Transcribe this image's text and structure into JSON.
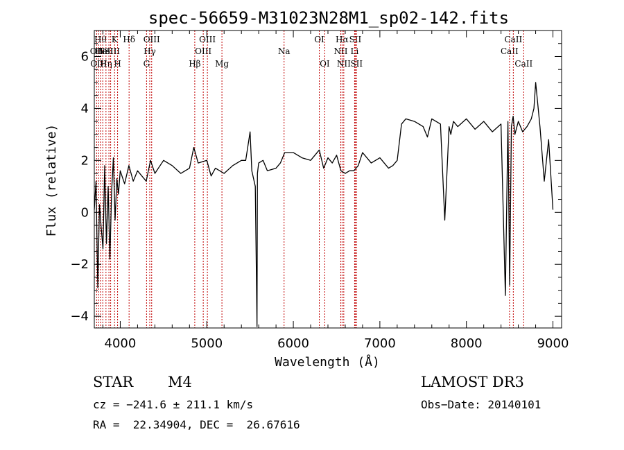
{
  "chart_data": {
    "type": "line",
    "title": "spec-56659-M31023N28M1_sp02-142.fits",
    "xlabel": "Wavelength (Å)",
    "ylabel": "Flux (relative)",
    "xlim": [
      3700,
      9100
    ],
    "ylim": [
      -4.45,
      7.0
    ],
    "xticks": [
      4000,
      5000,
      6000,
      7000,
      8000,
      9000
    ],
    "yticks": [
      -4,
      -2,
      0,
      2,
      4,
      6
    ],
    "line_color": "#000000",
    "marker_color": "#c00000",
    "spectrum": {
      "x": [
        3700,
        3720,
        3740,
        3760,
        3780,
        3800,
        3820,
        3840,
        3860,
        3880,
        3900,
        3920,
        3940,
        3960,
        3980,
        4000,
        4050,
        4100,
        4150,
        4200,
        4250,
        4300,
        4350,
        4400,
        4500,
        4600,
        4700,
        4800,
        4850,
        4900,
        5000,
        5050,
        5100,
        5200,
        5300,
        5400,
        5450,
        5500,
        5520,
        5560,
        5580,
        5585,
        5600,
        5650,
        5700,
        5800,
        5850,
        5900,
        6000,
        6100,
        6200,
        6300,
        6350,
        6400,
        6450,
        6500,
        6550,
        6600,
        6650,
        6700,
        6750,
        6800,
        6850,
        6900,
        7000,
        7100,
        7150,
        7200,
        7250,
        7300,
        7400,
        7500,
        7550,
        7600,
        7700,
        7750,
        7800,
        7820,
        7850,
        7900,
        8000,
        8100,
        8200,
        8300,
        8400,
        8450,
        8480,
        8500,
        8520,
        8540,
        8560,
        8600,
        8650,
        8700,
        8750,
        8780,
        8800,
        8850,
        8900,
        8950,
        9000
      ],
      "y": [
        0.1,
        1.2,
        -2.9,
        0.3,
        -0.6,
        -1.4,
        1.8,
        -1.2,
        1.0,
        -1.8,
        0.8,
        2.1,
        -0.3,
        1.3,
        0.7,
        1.6,
        1.1,
        1.8,
        1.2,
        1.6,
        1.4,
        1.2,
        2.0,
        1.5,
        2.0,
        1.8,
        1.5,
        1.7,
        2.5,
        1.9,
        2.0,
        1.4,
        1.7,
        1.5,
        1.8,
        2.0,
        2.0,
        3.1,
        1.6,
        1.0,
        -4.4,
        1.5,
        1.9,
        2.0,
        1.6,
        1.7,
        1.9,
        2.3,
        2.3,
        2.1,
        2.0,
        2.4,
        1.7,
        2.1,
        1.9,
        2.2,
        1.6,
        1.5,
        1.6,
        1.6,
        1.8,
        2.3,
        2.1,
        1.9,
        2.1,
        1.7,
        1.8,
        2.0,
        3.4,
        3.6,
        3.5,
        3.3,
        2.9,
        3.6,
        3.4,
        -0.3,
        3.3,
        3.0,
        3.5,
        3.3,
        3.6,
        3.2,
        3.5,
        3.1,
        3.4,
        -3.2,
        3.5,
        -2.8,
        3.3,
        3.7,
        3.0,
        3.5,
        3.1,
        3.3,
        3.6,
        4.0,
        5.0,
        3.3,
        1.2,
        2.8,
        0.1
      ]
    },
    "line_markers": [
      {
        "wavelength": 3727,
        "label": "OII",
        "row": 1
      },
      {
        "wavelength": 3750,
        "label": "OIII",
        "row": 2
      },
      {
        "wavelength": 3771,
        "label": "Hθ",
        "row": 0
      },
      {
        "wavelength": 3798,
        "label": "HeI",
        "row": 1
      },
      {
        "wavelength": 3835,
        "label": "Hη",
        "row": 2
      },
      {
        "wavelength": 3869,
        "label": "NeIII",
        "row": 1
      },
      {
        "wavelength": 3889,
        "label": "SII",
        "row": 1
      },
      {
        "wavelength": 3934,
        "label": "K",
        "row": 0
      },
      {
        "wavelength": 3969,
        "label": "H",
        "row": 2
      },
      {
        "wavelength": 4102,
        "label": "Hδ",
        "row": 0
      },
      {
        "wavelength": 4304,
        "label": "G",
        "row": 2
      },
      {
        "wavelength": 4341,
        "label": "Hγ",
        "row": 1
      },
      {
        "wavelength": 4363,
        "label": "OIII",
        "row": 0
      },
      {
        "wavelength": 4861,
        "label": "Hβ",
        "row": 2
      },
      {
        "wavelength": 4959,
        "label": "OIII",
        "row": 1
      },
      {
        "wavelength": 5007,
        "label": "OIII",
        "row": 0
      },
      {
        "wavelength": 5175,
        "label": "Mg",
        "row": 2
      },
      {
        "wavelength": 5893,
        "label": "Na",
        "row": 1
      },
      {
        "wavelength": 6300,
        "label": "OI",
        "row": 0
      },
      {
        "wavelength": 6363,
        "label": "OI",
        "row": 2
      },
      {
        "wavelength": 6548,
        "label": "NII",
        "row": 1
      },
      {
        "wavelength": 6563,
        "label": "Hα",
        "row": 0
      },
      {
        "wavelength": 6583,
        "label": "NII",
        "row": 2
      },
      {
        "wavelength": 6708,
        "label": "Li",
        "row": 1
      },
      {
        "wavelength": 6716,
        "label": "SII",
        "row": 0
      },
      {
        "wavelength": 6731,
        "label": "SII",
        "row": 2
      },
      {
        "wavelength": 8498,
        "label": "CaII",
        "row": 1
      },
      {
        "wavelength": 8542,
        "label": "CaII",
        "row": 0
      },
      {
        "wavelength": 8662,
        "label": "CaII",
        "row": 2
      }
    ]
  },
  "info": {
    "class": "STAR",
    "subclass": "M4",
    "survey": "LAMOST DR3",
    "cz": "cz = −241.6 ± 211.1 km/s",
    "obs_date": "Obs−Date: 20140101",
    "coords": "RA =  22.34904, DEC =  26.67616"
  }
}
